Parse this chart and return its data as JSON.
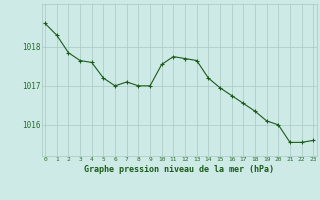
{
  "x": [
    0,
    1,
    2,
    3,
    4,
    5,
    6,
    7,
    8,
    9,
    10,
    11,
    12,
    13,
    14,
    15,
    16,
    17,
    18,
    19,
    20,
    21,
    22,
    23
  ],
  "y": [
    1018.6,
    1018.3,
    1017.85,
    1017.65,
    1017.6,
    1017.2,
    1017.0,
    1017.1,
    1017.0,
    1017.0,
    1017.55,
    1017.75,
    1017.7,
    1017.65,
    1017.2,
    1016.95,
    1016.75,
    1016.55,
    1016.35,
    1016.1,
    1016.0,
    1015.55,
    1015.55,
    1015.6
  ],
  "line_color": "#1a5c1a",
  "marker_color": "#1a5c1a",
  "bg_color": "#ceeae6",
  "grid_color": "#a8c8c4",
  "xlabel": "Graphe pression niveau de la mer (hPa)",
  "xlabel_color": "#1a5c1a",
  "tick_color": "#2a6b2a",
  "ylim": [
    1015.2,
    1019.1
  ],
  "xlim": [
    -0.3,
    23.3
  ],
  "yticks": [
    1016,
    1017,
    1018
  ],
  "xticks": [
    0,
    1,
    2,
    3,
    4,
    5,
    6,
    7,
    8,
    9,
    10,
    11,
    12,
    13,
    14,
    15,
    16,
    17,
    18,
    19,
    20,
    21,
    22,
    23
  ],
  "xtick_labels": [
    "0",
    "1",
    "2",
    "3",
    "4",
    "5",
    "6",
    "7",
    "8",
    "9",
    "10",
    "11",
    "12",
    "13",
    "14",
    "15",
    "16",
    "17",
    "18",
    "19",
    "20",
    "21",
    "22",
    "23"
  ]
}
